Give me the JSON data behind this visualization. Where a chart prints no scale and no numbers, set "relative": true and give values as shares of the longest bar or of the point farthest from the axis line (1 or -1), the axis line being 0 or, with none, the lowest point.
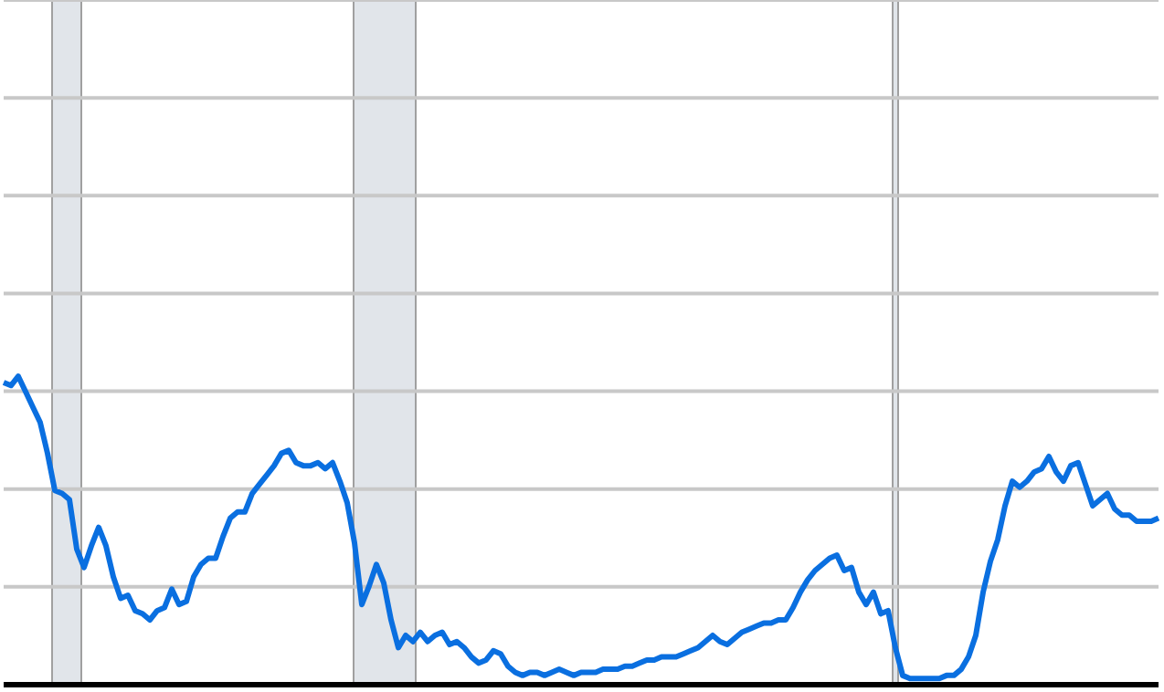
{
  "chart_data": {
    "type": "line",
    "relative": true,
    "grid": "y",
    "color": "#0a6fe0",
    "categories": [
      null,
      null,
      null,
      null,
      null,
      null,
      null,
      null,
      null,
      null,
      null,
      null,
      null,
      null,
      null,
      null,
      null,
      null,
      null,
      null,
      null,
      null,
      null,
      null,
      null,
      null,
      null,
      null,
      null,
      null,
      null,
      null,
      null,
      null,
      null,
      null,
      null,
      null,
      null,
      null,
      null,
      null,
      null,
      null,
      null,
      null,
      null,
      null,
      null,
      null,
      null,
      null,
      null,
      null,
      null,
      null,
      null,
      null,
      null,
      null,
      null,
      null,
      null,
      null,
      null,
      null,
      null,
      null,
      null,
      null,
      null,
      null,
      null,
      null,
      null,
      null,
      null,
      null,
      null,
      null,
      null,
      null,
      null,
      null,
      null,
      null,
      null,
      null,
      null,
      null,
      null,
      null,
      null,
      null,
      null,
      null,
      null,
      null,
      null,
      null,
      null,
      null,
      null,
      null,
      null,
      null,
      null,
      null,
      null,
      null,
      null,
      null,
      null,
      null,
      null,
      null,
      null,
      null,
      null,
      null,
      null,
      null,
      null,
      null,
      null,
      null,
      null,
      null,
      null,
      null,
      null,
      null,
      null,
      null,
      null,
      null,
      null,
      null,
      null,
      null,
      null,
      null,
      null,
      null,
      null,
      null,
      null,
      null,
      null,
      null,
      null,
      null,
      null,
      null,
      null,
      null,
      null,
      null,
      null
    ],
    "values": [
      0.98,
      0.97,
      1,
      0.95,
      0.9,
      0.85,
      0.75,
      0.63,
      0.62,
      0.6,
      0.44,
      0.38,
      0.45,
      0.51,
      0.45,
      0.35,
      0.28,
      0.29,
      0.24,
      0.23,
      0.21,
      0.24,
      0.25,
      0.31,
      0.26,
      0.27,
      0.35,
      0.39,
      0.41,
      0.41,
      0.48,
      0.54,
      0.56,
      0.56,
      0.62,
      0.65,
      0.68,
      0.71,
      0.75,
      0.76,
      0.72,
      0.71,
      0.71,
      0.72,
      0.7,
      0.72,
      0.66,
      0.59,
      0.46,
      0.26,
      0.32,
      0.39,
      0.33,
      0.21,
      0.12,
      0.16,
      0.14,
      0.17,
      0.14,
      0.16,
      0.17,
      0.13,
      0.14,
      0.12,
      0.09,
      0.07,
      0.08,
      0.11,
      0.1,
      0.06,
      0.04,
      0.03,
      0.04,
      0.04,
      0.03,
      0.04,
      0.05,
      0.04,
      0.03,
      0.04,
      0.04,
      0.04,
      0.05,
      0.05,
      0.05,
      0.06,
      0.06,
      0.07,
      0.08,
      0.08,
      0.09,
      0.09,
      0.09,
      0.1,
      0.11,
      0.12,
      0.14,
      0.16,
      0.14,
      0.13,
      0.15,
      0.17,
      0.18,
      0.19,
      0.2,
      0.2,
      0.21,
      0.21,
      0.25,
      0.3,
      0.34,
      0.37,
      0.39,
      0.41,
      0.42,
      0.37,
      0.38,
      0.3,
      0.26,
      0.3,
      0.23,
      0.24,
      0.12,
      0.03,
      0.02,
      0.02,
      0.02,
      0.02,
      0.02,
      0.03,
      0.03,
      0.05,
      0.09,
      0.16,
      0.3,
      0.4,
      0.47,
      0.58,
      0.66,
      0.64,
      0.66,
      0.69,
      0.7,
      0.74,
      0.69,
      0.66,
      0.71,
      0.72,
      0.65,
      0.58,
      0.6,
      0.62,
      0.57,
      0.55,
      0.55,
      0.53,
      0.53,
      0.53,
      0.54
    ]
  }
}
